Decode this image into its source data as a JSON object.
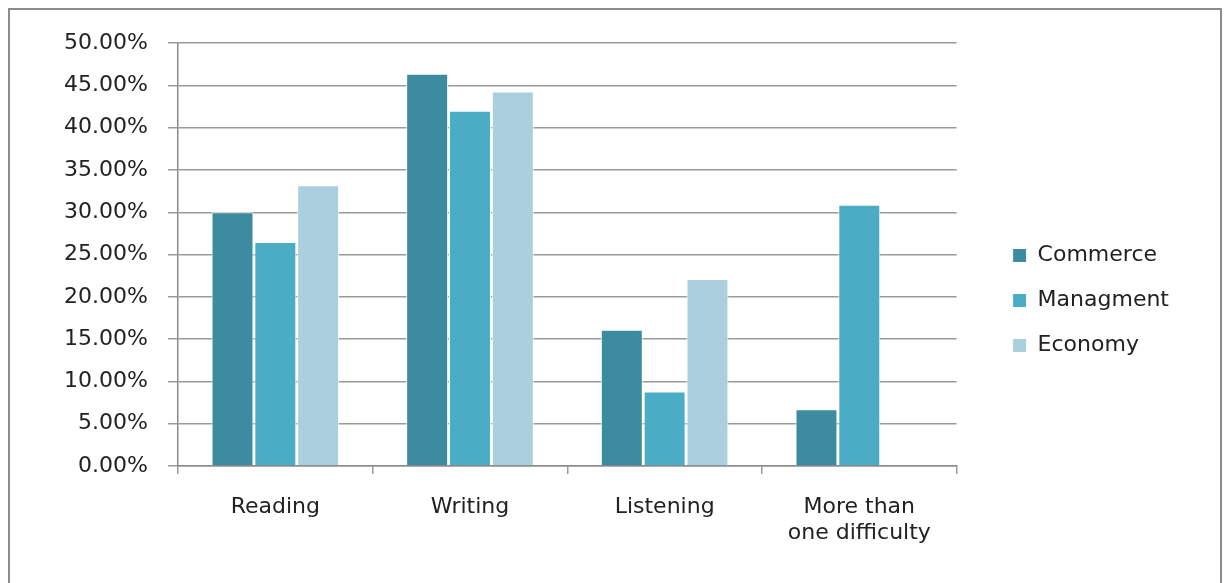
{
  "chart_data": {
    "type": "bar",
    "categories": [
      "Reading",
      "Writing",
      "Listening",
      "More than one difficulty"
    ],
    "series": [
      {
        "name": "Commerce",
        "color": "#3c8ba1",
        "values": [
          30.0,
          46.4,
          16.1,
          6.7
        ]
      },
      {
        "name": "Managment",
        "color": "#4bacc6",
        "values": [
          26.5,
          42.0,
          8.8,
          30.9
        ]
      },
      {
        "name": "Economy",
        "color": "#aacfde",
        "values": [
          33.2,
          44.3,
          22.1,
          null
        ]
      }
    ],
    "ylim": [
      0,
      50
    ],
    "yticks": [
      {
        "value": 0,
        "label": "0.00%"
      },
      {
        "value": 5,
        "label": "5.00%"
      },
      {
        "value": 10,
        "label": "10.00%"
      },
      {
        "value": 15,
        "label": "15.00%"
      },
      {
        "value": 20,
        "label": "20.00%"
      },
      {
        "value": 25,
        "label": "25.00%"
      },
      {
        "value": 30,
        "label": "30.00%"
      },
      {
        "value": 35,
        "label": "35.00%"
      },
      {
        "value": 40,
        "label": "40.00%"
      },
      {
        "value": 45,
        "label": "45.00%"
      },
      {
        "value": 50,
        "label": "50.00%"
      }
    ],
    "grid": "y",
    "legend": "right"
  }
}
